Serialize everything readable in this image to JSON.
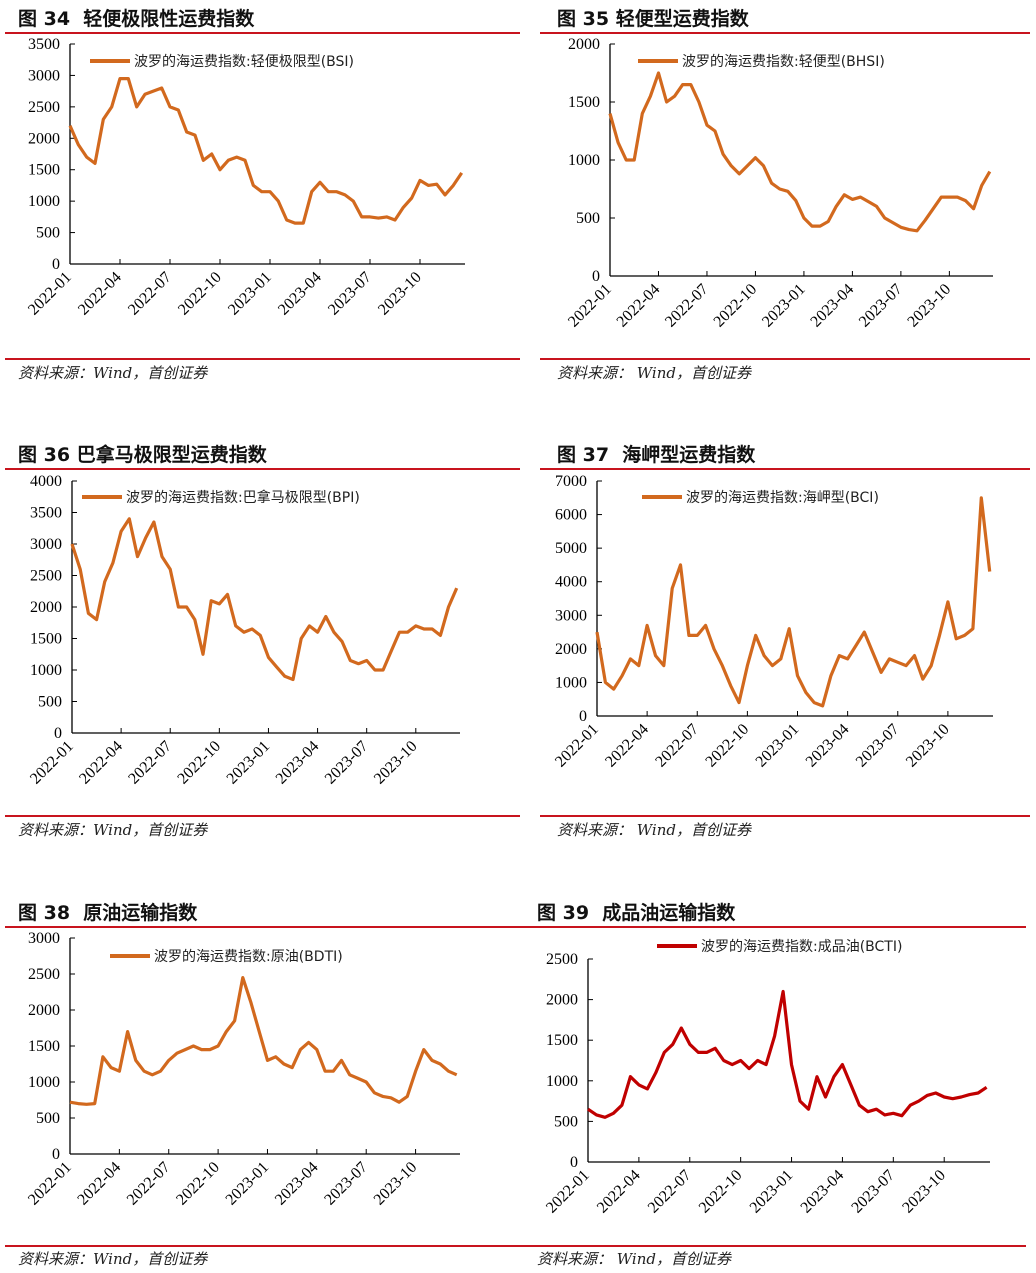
{
  "source_text": "资料来源：Wind，首创证券",
  "source_text_spaced": "资料来源：  Wind，首创证券",
  "chart_data": [
    {
      "figure": "图 34",
      "title": "轻便极限性运费指数",
      "type": "line",
      "color": "#D2691E",
      "series": [
        {
          "name": "波罗的海运费指数:轻便极限型(BSI)",
          "values": [
            2200,
            1900,
            1700,
            1600,
            2300,
            2500,
            2950,
            2950,
            2500,
            2700,
            2750,
            2800,
            2500,
            2450,
            2100,
            2050,
            1650,
            1750,
            1500,
            1650,
            1700,
            1650,
            1250,
            1150,
            1150,
            1000,
            700,
            650,
            650,
            1150,
            1300,
            1150,
            1150,
            1100,
            1000,
            750,
            750,
            730,
            750,
            700,
            900,
            1050,
            1330,
            1250,
            1270,
            1100,
            1250,
            1450
          ]
        }
      ],
      "ylim": [
        0,
        3500
      ],
      "yticks": [
        "0",
        "500",
        "1000",
        "1500",
        "2000",
        "2500",
        "3000",
        "3500"
      ],
      "xticks": [
        "2022-01",
        "2022-04",
        "2022-07",
        "2022-10",
        "2023-01",
        "2023-04",
        "2023-07",
        "2023-10"
      ]
    },
    {
      "figure": "图 35",
      "title": "轻便型运费指数",
      "type": "line",
      "color": "#D2691E",
      "series": [
        {
          "name": "波罗的海运费指数:轻便型(BHSI)",
          "values": [
            1400,
            1150,
            1000,
            1000,
            1400,
            1550,
            1750,
            1500,
            1550,
            1650,
            1650,
            1500,
            1300,
            1250,
            1050,
            950,
            880,
            950,
            1020,
            950,
            800,
            750,
            730,
            650,
            500,
            430,
            430,
            470,
            600,
            700,
            660,
            680,
            640,
            600,
            500,
            460,
            420,
            400,
            390,
            480,
            580,
            680,
            680,
            680,
            650,
            580,
            780,
            900
          ]
        }
      ],
      "ylim": [
        0,
        2000
      ],
      "yticks": [
        "0",
        "500",
        "1000",
        "1500",
        "2000"
      ],
      "xticks": [
        "2022-01",
        "2022-04",
        "2022-07",
        "2022-10",
        "2023-01",
        "2023-04",
        "2023-07",
        "2023-10"
      ]
    },
    {
      "figure": "图 36",
      "title": "巴拿马极限型运费指数",
      "type": "line",
      "color": "#D2691E",
      "series": [
        {
          "name": "波罗的海运费指数:巴拿马极限型(BPI)",
          "values": [
            3000,
            2600,
            1900,
            1800,
            2400,
            2700,
            3200,
            3400,
            2800,
            3100,
            3350,
            2800,
            2600,
            2000,
            2000,
            1800,
            1250,
            2100,
            2050,
            2200,
            1700,
            1600,
            1650,
            1550,
            1200,
            1050,
            900,
            850,
            1500,
            1700,
            1600,
            1850,
            1600,
            1450,
            1150,
            1100,
            1150,
            1000,
            1000,
            1300,
            1600,
            1600,
            1700,
            1650,
            1650,
            1550,
            2000,
            2300
          ]
        }
      ],
      "ylim": [
        0,
        4000
      ],
      "yticks": [
        "0",
        "500",
        "1000",
        "1500",
        "2000",
        "2500",
        "3000",
        "3500",
        "4000"
      ],
      "xticks": [
        "2022-01",
        "2022-04",
        "2022-07",
        "2022-10",
        "2023-01",
        "2023-04",
        "2023-07",
        "2023-10"
      ]
    },
    {
      "figure": "图 37",
      "title": "海岬型运费指数",
      "type": "line",
      "color": "#D2691E",
      "series": [
        {
          "name": "波罗的海运费指数:海岬型(BCI)",
          "values": [
            2500,
            1000,
            800,
            1200,
            1700,
            1500,
            2700,
            1800,
            1500,
            3800,
            4500,
            2400,
            2400,
            2700,
            2000,
            1500,
            900,
            400,
            1500,
            2400,
            1800,
            1500,
            1700,
            2600,
            1200,
            700,
            400,
            300,
            1200,
            1800,
            1700,
            2100,
            2500,
            1900,
            1300,
            1700,
            1600,
            1500,
            1800,
            1100,
            1500,
            2400,
            3400,
            2300,
            2400,
            2600,
            6500,
            4300
          ]
        }
      ],
      "ylim": [
        0,
        7000
      ],
      "yticks": [
        "0",
        "1000",
        "2000",
        "3000",
        "4000",
        "5000",
        "6000",
        "7000"
      ],
      "xticks": [
        "2022-01",
        "2022-04",
        "2022-07",
        "2022-10",
        "2023-01",
        "2023-04",
        "2023-07",
        "2023-10"
      ]
    },
    {
      "figure": "图 38",
      "title": "原油运输指数",
      "type": "line",
      "color": "#D2691E",
      "series": [
        {
          "name": "波罗的海运费指数:原油(BDTI)",
          "values": [
            720,
            700,
            690,
            700,
            1350,
            1200,
            1150,
            1700,
            1300,
            1150,
            1100,
            1150,
            1300,
            1400,
            1450,
            1500,
            1450,
            1450,
            1500,
            1700,
            1850,
            2450,
            2100,
            1700,
            1300,
            1350,
            1250,
            1200,
            1450,
            1550,
            1450,
            1150,
            1150,
            1300,
            1100,
            1050,
            1000,
            850,
            800,
            780,
            720,
            800,
            1150,
            1450,
            1300,
            1250,
            1150,
            1100
          ]
        }
      ],
      "ylim": [
        0,
        3000
      ],
      "yticks": [
        "0",
        "500",
        "1000",
        "1500",
        "2000",
        "2500",
        "3000"
      ],
      "xticks": [
        "2022-01",
        "2022-04",
        "2022-07",
        "2022-10",
        "2023-01",
        "2023-04",
        "2023-07",
        "2023-10"
      ]
    },
    {
      "figure": "图 39",
      "title": "成品油运输指数",
      "type": "line",
      "color": "#C00000",
      "series": [
        {
          "name": "波罗的海运费指数:成品油(BCTI)",
          "values": [
            650,
            580,
            550,
            600,
            700,
            1050,
            950,
            900,
            1100,
            1350,
            1450,
            1650,
            1450,
            1350,
            1350,
            1400,
            1250,
            1200,
            1250,
            1150,
            1250,
            1200,
            1550,
            2100,
            1200,
            750,
            650,
            1050,
            800,
            1050,
            1200,
            950,
            700,
            620,
            650,
            580,
            600,
            570,
            700,
            750,
            820,
            850,
            800,
            780,
            800,
            830,
            850,
            920
          ]
        }
      ],
      "ylim": [
        0,
        2500
      ],
      "yticks": [
        "0",
        "500",
        "1000",
        "1500",
        "2000",
        "2500"
      ],
      "xticks": [
        "2022-01",
        "2022-04",
        "2022-07",
        "2022-10",
        "2023-01",
        "2023-04",
        "2023-07",
        "2023-10"
      ]
    }
  ]
}
